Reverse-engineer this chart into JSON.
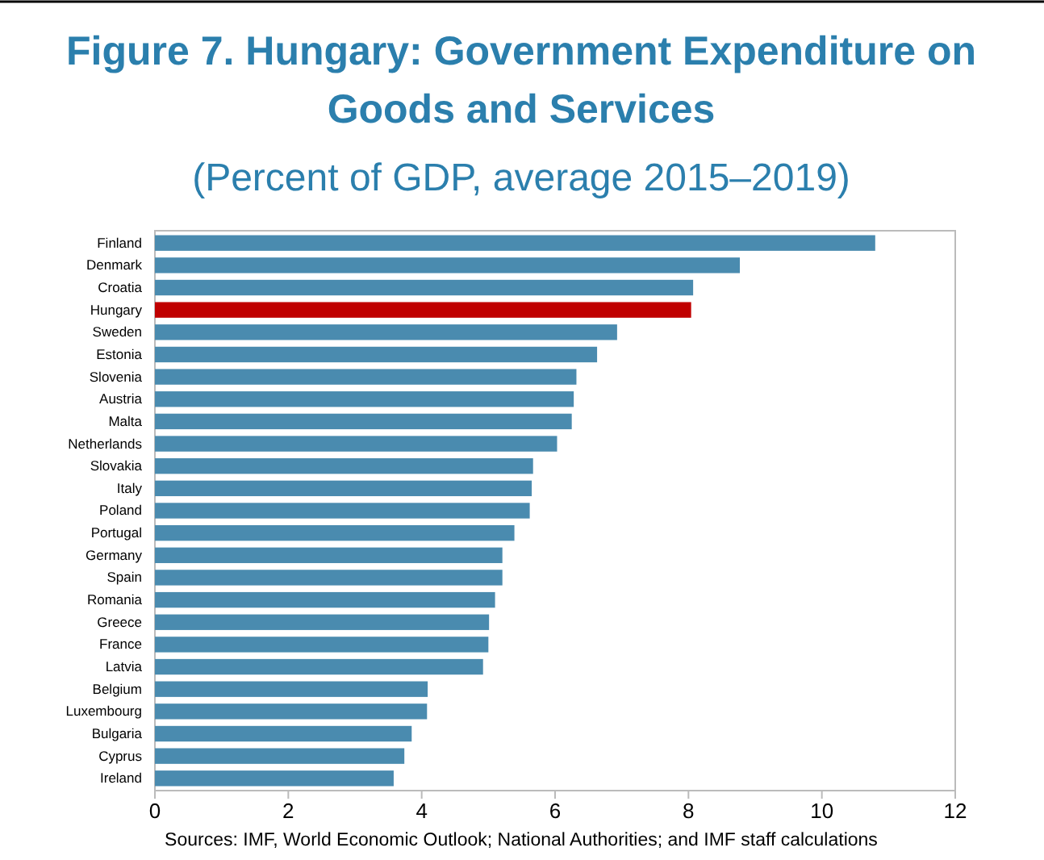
{
  "chart_data": {
    "type": "bar",
    "orientation": "horizontal",
    "title": "Figure 7. Hungary: Government Expenditure on Goods and Services",
    "subtitle": "(Percent of GDP, average 2015–2019)",
    "categories": [
      "Finland",
      "Denmark",
      "Croatia",
      "Hungary",
      "Sweden",
      "Estonia",
      "Slovenia",
      "Austria",
      "Malta",
      "Netherlands",
      "Slovakia",
      "Italy",
      "Poland",
      "Portugal",
      "Germany",
      "Spain",
      "Romania",
      "Greece",
      "France",
      "Latvia",
      "Belgium",
      "Luxembourg",
      "Bulgaria",
      "Cyprus",
      "Ireland"
    ],
    "values": [
      10.8,
      8.77,
      8.07,
      8.04,
      6.93,
      6.63,
      6.32,
      6.28,
      6.25,
      6.03,
      5.67,
      5.65,
      5.62,
      5.39,
      5.21,
      5.21,
      5.1,
      5.01,
      5.0,
      4.92,
      4.09,
      4.08,
      3.85,
      3.74,
      3.58
    ],
    "colors": [
      "#4a8baf",
      "#4a8baf",
      "#4a8baf",
      "#c00000",
      "#4a8baf",
      "#4a8baf",
      "#4a8baf",
      "#4a8baf",
      "#4a8baf",
      "#4a8baf",
      "#4a8baf",
      "#4a8baf",
      "#4a8baf",
      "#4a8baf",
      "#4a8baf",
      "#4a8baf",
      "#4a8baf",
      "#4a8baf",
      "#4a8baf",
      "#4a8baf",
      "#4a8baf",
      "#4a8baf",
      "#4a8baf",
      "#4a8baf",
      "#4a8baf"
    ],
    "xlim": [
      0,
      12
    ],
    "xticks": [
      0,
      2,
      4,
      6,
      8,
      10,
      12
    ],
    "annotations": [
      "Sources: IMF, World Economic Outlook; National Authorities; and IMF staff calculations"
    ]
  }
}
